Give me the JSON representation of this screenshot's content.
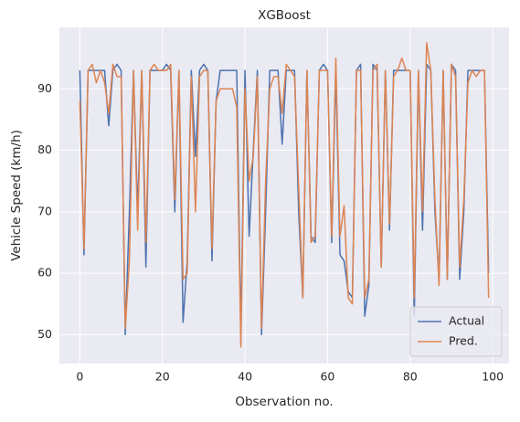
{
  "chart_data": {
    "type": "line",
    "title": "XGBoost",
    "xlabel": "Observation no.",
    "ylabel": "Vehicle Speed (km/h)",
    "x": [
      0,
      1,
      2,
      3,
      4,
      5,
      6,
      7,
      8,
      9,
      10,
      11,
      12,
      13,
      14,
      15,
      16,
      17,
      18,
      19,
      20,
      21,
      22,
      23,
      24,
      25,
      26,
      27,
      28,
      29,
      30,
      31,
      32,
      33,
      34,
      35,
      36,
      37,
      38,
      39,
      40,
      41,
      42,
      43,
      44,
      45,
      46,
      47,
      48,
      49,
      50,
      51,
      52,
      53,
      54,
      55,
      56,
      57,
      58,
      59,
      60,
      61,
      62,
      63,
      64,
      65,
      66,
      67,
      68,
      69,
      70,
      71,
      72,
      73,
      74,
      75,
      76,
      77,
      78,
      79,
      80,
      81,
      82,
      83,
      84,
      85,
      86,
      87,
      88,
      89,
      90,
      91,
      92,
      93,
      94,
      95,
      96,
      97,
      98,
      99
    ],
    "series": [
      {
        "name": "Actual",
        "color": "#4c72b0",
        "values": [
          93,
          63,
          93,
          93,
          93,
          93,
          93,
          84,
          93,
          94,
          93,
          50,
          70,
          93,
          70,
          93,
          61,
          93,
          93,
          93,
          93,
          94,
          93,
          70,
          93,
          52,
          62,
          93,
          79,
          93,
          94,
          93,
          62,
          88,
          93,
          93,
          93,
          93,
          93,
          50,
          93,
          66,
          80,
          93,
          50,
          70,
          93,
          93,
          93,
          81,
          93,
          93,
          93,
          70,
          56,
          93,
          66,
          65,
          93,
          94,
          93,
          65,
          93,
          63,
          62,
          57,
          56,
          93,
          94,
          53,
          58,
          94,
          93,
          61,
          93,
          67,
          93,
          93,
          93,
          93,
          93,
          53,
          93,
          67,
          94,
          93,
          70,
          59,
          93,
          59,
          94,
          93,
          59,
          70,
          93,
          93,
          93,
          93,
          93,
          60
        ]
      },
      {
        "name": "Pred.",
        "color": "#dd8452",
        "values": [
          88,
          64,
          93,
          94,
          91,
          93,
          91,
          86,
          94,
          92,
          92,
          51,
          62,
          93,
          67,
          93,
          65,
          93,
          94,
          93,
          93,
          93,
          94,
          72,
          93,
          59,
          60,
          92,
          70,
          92,
          93,
          93,
          64,
          88,
          90,
          90,
          90,
          90,
          87,
          48,
          90,
          75,
          79,
          92,
          51,
          75,
          90,
          92,
          92,
          86,
          94,
          93,
          92,
          74,
          56,
          93,
          65,
          66,
          93,
          93,
          93,
          66,
          95,
          66,
          71,
          56,
          55,
          93,
          93,
          56,
          59,
          93,
          94,
          61,
          93,
          68,
          92,
          93,
          95,
          93,
          93,
          56,
          93,
          70,
          97.5,
          93,
          72,
          58,
          93,
          59,
          94,
          92,
          61,
          72,
          91,
          93,
          92,
          93,
          93,
          56
        ]
      }
    ],
    "xlim": [
      -4.95,
      103.95
    ],
    "xticks": [
      0,
      20,
      40,
      60,
      80,
      100
    ],
    "ylim": [
      45.3,
      100
    ],
    "yticks": [
      50,
      60,
      70,
      80,
      90
    ],
    "grid": true,
    "legend": "lower right"
  }
}
